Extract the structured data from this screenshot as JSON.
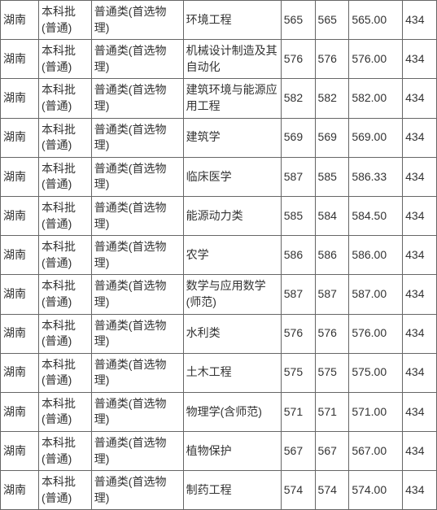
{
  "table": {
    "columns": [
      {
        "key": "province",
        "class": "col-province"
      },
      {
        "key": "batch",
        "class": "col-batch"
      },
      {
        "key": "category",
        "class": "col-category"
      },
      {
        "key": "major",
        "class": "col-major"
      },
      {
        "key": "score1",
        "class": "col-num1"
      },
      {
        "key": "score2",
        "class": "col-num2"
      },
      {
        "key": "score3",
        "class": "col-num3"
      },
      {
        "key": "score4",
        "class": "col-num4"
      }
    ],
    "rows": [
      {
        "province": "湖南",
        "batch": "本科批(普通)",
        "category": "普通类(首选物理)",
        "major": "环境工程",
        "score1": "565",
        "score2": "565",
        "score3": "565.00",
        "score4": "434"
      },
      {
        "province": "湖南",
        "batch": "本科批(普通)",
        "category": "普通类(首选物理)",
        "major": "机械设计制造及其自动化",
        "score1": "576",
        "score2": "576",
        "score3": "576.00",
        "score4": "434"
      },
      {
        "province": "湖南",
        "batch": "本科批(普通)",
        "category": "普通类(首选物理)",
        "major": "建筑环境与能源应用工程",
        "score1": "582",
        "score2": "582",
        "score3": "582.00",
        "score4": "434"
      },
      {
        "province": "湖南",
        "batch": "本科批(普通)",
        "category": "普通类(首选物理)",
        "major": "建筑学",
        "score1": "569",
        "score2": "569",
        "score3": "569.00",
        "score4": "434"
      },
      {
        "province": "湖南",
        "batch": "本科批(普通)",
        "category": "普通类(首选物理)",
        "major": "临床医学",
        "score1": "587",
        "score2": "585",
        "score3": "586.33",
        "score4": "434"
      },
      {
        "province": "湖南",
        "batch": "本科批(普通)",
        "category": "普通类(首选物理)",
        "major": "能源动力类",
        "score1": "585",
        "score2": "584",
        "score3": "584.50",
        "score4": "434"
      },
      {
        "province": "湖南",
        "batch": "本科批(普通)",
        "category": "普通类(首选物理)",
        "major": "农学",
        "score1": "586",
        "score2": "586",
        "score3": "586.00",
        "score4": "434"
      },
      {
        "province": "湖南",
        "batch": "本科批(普通)",
        "category": "普通类(首选物理)",
        "major": "数学与应用数学(师范)",
        "score1": "587",
        "score2": "587",
        "score3": "587.00",
        "score4": "434"
      },
      {
        "province": "湖南",
        "batch": "本科批(普通)",
        "category": "普通类(首选物理)",
        "major": "水利类",
        "score1": "576",
        "score2": "576",
        "score3": "576.00",
        "score4": "434"
      },
      {
        "province": "湖南",
        "batch": "本科批(普通)",
        "category": "普通类(首选物理)",
        "major": "土木工程",
        "score1": "575",
        "score2": "575",
        "score3": "575.00",
        "score4": "434"
      },
      {
        "province": "湖南",
        "batch": "本科批(普通)",
        "category": "普通类(首选物理)",
        "major": "物理学(含师范)",
        "score1": "571",
        "score2": "571",
        "score3": "571.00",
        "score4": "434"
      },
      {
        "province": "湖南",
        "batch": "本科批(普通)",
        "category": "普通类(首选物理)",
        "major": "植物保护",
        "score1": "567",
        "score2": "567",
        "score3": "567.00",
        "score4": "434"
      },
      {
        "province": "湖南",
        "batch": "本科批(普通)",
        "category": "普通类(首选物理)",
        "major": "制药工程",
        "score1": "574",
        "score2": "574",
        "score3": "574.00",
        "score4": "434"
      }
    ]
  },
  "styling": {
    "border_color": "#666666",
    "text_color": "#333333",
    "background_color": "#ffffff",
    "font_size": 14,
    "font_family": "Microsoft YaHei, SimSun, Arial, sans-serif"
  }
}
